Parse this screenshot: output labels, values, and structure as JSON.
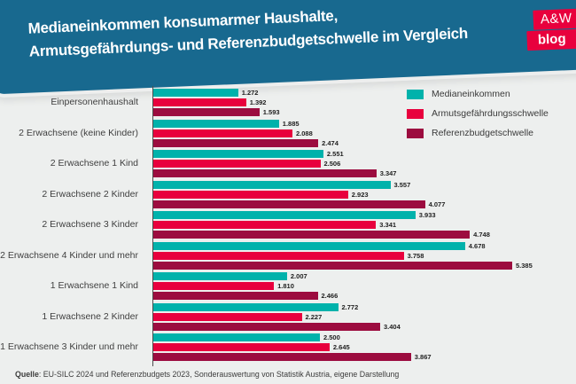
{
  "header": {
    "title_lines": [
      "Medianeinkommen konsumarmer Haushalte,",
      "Armutsgefährdungs- und Referenzbudgetschwelle im Vergleich"
    ],
    "logo": {
      "line1": "A&W",
      "line2": "blog"
    }
  },
  "chart_data": {
    "type": "bar",
    "orientation": "horizontal",
    "title": "Medianeinkommen konsumarmer Haushalte, Armutsgefährdungs- und Referenzbudgetschwelle im Vergleich",
    "unit": "Euro",
    "categories": [
      "Einpersonenhaushalt",
      "2 Erwachsene (keine Kinder)",
      "2 Erwachsene 1 Kind",
      "2 Erwachsene 2 Kinder",
      "2 Erwachsene 3 Kinder",
      "2 Erwachsene 4 Kinder und mehr",
      "1 Erwachsene 1 Kind",
      "1 Erwachsene 2 Kinder",
      "1 Erwachsene 3 Kinder und mehr"
    ],
    "series": [
      {
        "name": "Medianeinkommen",
        "color": "#00b2ab",
        "values": [
          1272,
          1885,
          2551,
          3557,
          3933,
          4678,
          2007,
          2772,
          2500
        ]
      },
      {
        "name": "Armutsgefährdungsschwelle",
        "color": "#e8003d",
        "values": [
          1392,
          2088,
          2506,
          2923,
          3341,
          3758,
          1810,
          2227,
          2645
        ]
      },
      {
        "name": "Referenzbudgetschwelle",
        "color": "#9c0c3f",
        "values": [
          1593,
          2474,
          3347,
          4077,
          4748,
          5385,
          2466,
          3404,
          3867
        ]
      }
    ],
    "value_labels": true,
    "number_format": "thousands-dot",
    "legend_position": "top-right",
    "xlim": [
      0,
      5600
    ],
    "grid": false
  },
  "footer": {
    "source_bold": "Quelle",
    "source_rest": ": EU-SILC 2024 und Referenzbudgets 2023, Sonderauswertung von Statistik Austria, eigene Darstellung"
  },
  "colors": {
    "background": "#edefee",
    "banner": "#18698f",
    "logo_red": "#e8003d",
    "axis": "#4d4d4d",
    "category_text": "#3f3f3f",
    "value_label": "#1e1e1e"
  }
}
